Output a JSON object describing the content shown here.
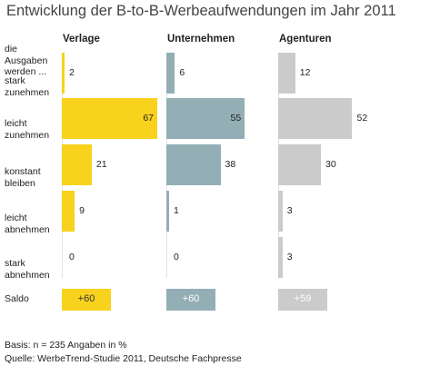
{
  "title": "Entwicklung der B-to-B-Werbeaufwendungen im Jahr 2011",
  "colors": {
    "Verlage": "#f8d21c",
    "Unternehmen": "#94aeb5",
    "Agenturen": "#cbcbcb"
  },
  "chart_data": {
    "type": "bar",
    "title": "Entwicklung der B-to-B-Werbeaufwendungen im Jahr 2011",
    "header_label": "die Ausgaben werden ...",
    "categories": [
      "stark zunehmen",
      "leicht zunehmen",
      "konstant bleiben",
      "leicht abnehmen",
      "stark abnehmen"
    ],
    "series": [
      {
        "name": "Verlage",
        "values": [
          2,
          67,
          21,
          9,
          0
        ],
        "saldo": "+60"
      },
      {
        "name": "Unternehmen",
        "values": [
          6,
          55,
          38,
          1,
          0
        ],
        "saldo": "+60"
      },
      {
        "name": "Agenturen",
        "values": [
          12,
          52,
          30,
          3,
          3
        ],
        "saldo": "+59"
      }
    ],
    "saldo_label": "Saldo",
    "xlim": [
      0,
      67
    ]
  },
  "footnotes": {
    "basis": "Basis: n = 235 Angaben in %",
    "source": "Quelle: WerbeTrend-Studie 2011, Deutsche Fachpresse"
  }
}
